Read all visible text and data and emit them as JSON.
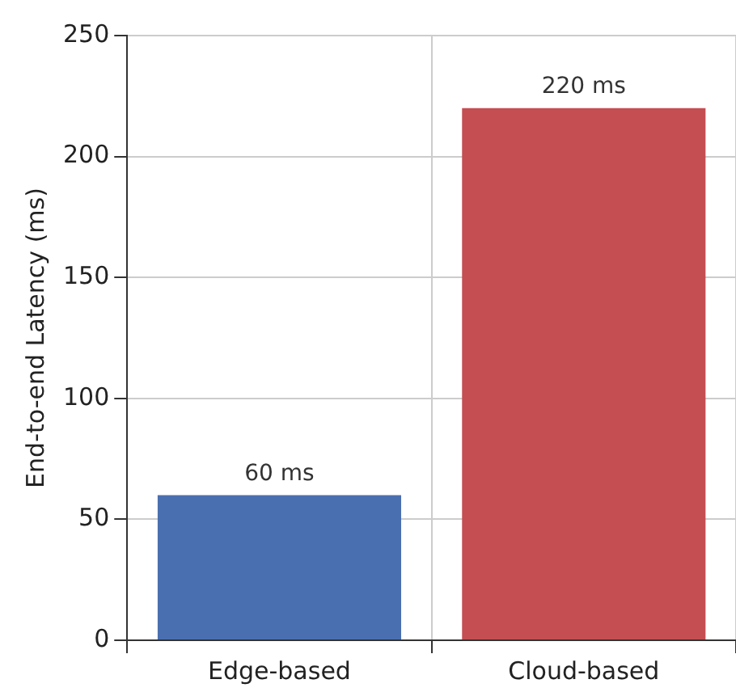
{
  "chart_data": {
    "type": "bar",
    "ylabel": "End-to-end Latency (ms)",
    "categories": [
      "Edge-based",
      "Cloud-based"
    ],
    "values": [
      60,
      220
    ],
    "colors": [
      "#4a6fb0",
      "#c44e52"
    ],
    "value_labels": [
      "60 ms",
      "220 ms"
    ],
    "ylim": [
      0,
      250
    ],
    "yticks": [
      0,
      50,
      100,
      150,
      200,
      250
    ],
    "grid": true,
    "legend": false
  }
}
